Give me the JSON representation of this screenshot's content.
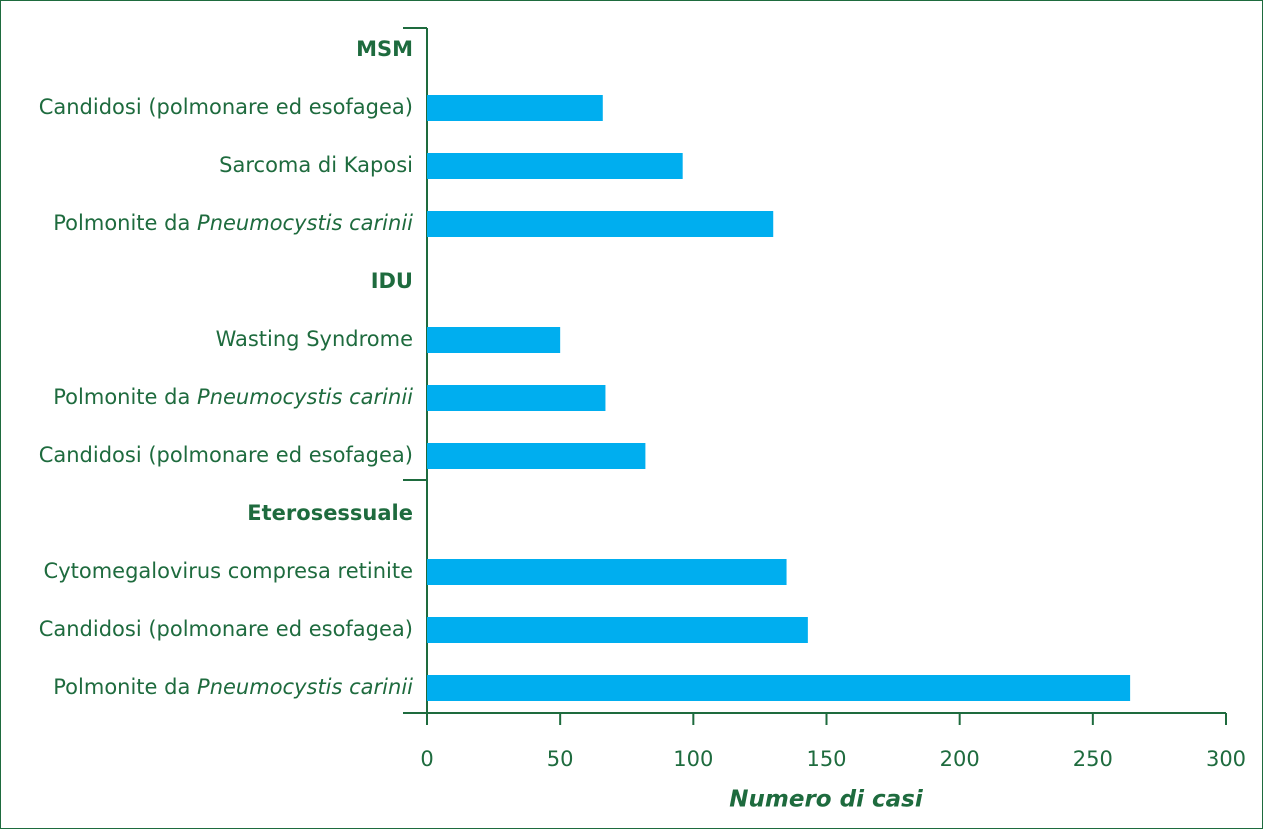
{
  "chart_data": {
    "type": "bar",
    "orientation": "horizontal",
    "groups": [
      {
        "name": "MSM",
        "categories": [
          "Candidosi (polmonare ed esofagea)",
          "Sarcoma di Kaposi",
          {
            "text": "Polmonite da",
            "italic": "Pneumocystis carinii"
          }
        ],
        "values": [
          66,
          96,
          130
        ]
      },
      {
        "name": "IDU",
        "categories": [
          "Wasting Syndrome",
          {
            "text": "Polmonite da",
            "italic": "Pneumocystis carinii"
          },
          "Candidosi (polmonare ed esofagea)"
        ],
        "values": [
          50,
          67,
          82
        ]
      },
      {
        "name": "Eterosessuale",
        "categories": [
          "Cytomegalovirus compresa retinite",
          "Candidosi (polmonare ed esofagea)",
          {
            "text": "Polmonite da",
            "italic": "Pneumocystis carinii"
          }
        ],
        "values": [
          135,
          143,
          264
        ]
      }
    ],
    "color": "#00aeef",
    "xlabel": "Numero di casi",
    "xlim": [
      0,
      300
    ],
    "xticks": [
      0,
      50,
      100,
      150,
      200,
      250,
      300
    ]
  }
}
